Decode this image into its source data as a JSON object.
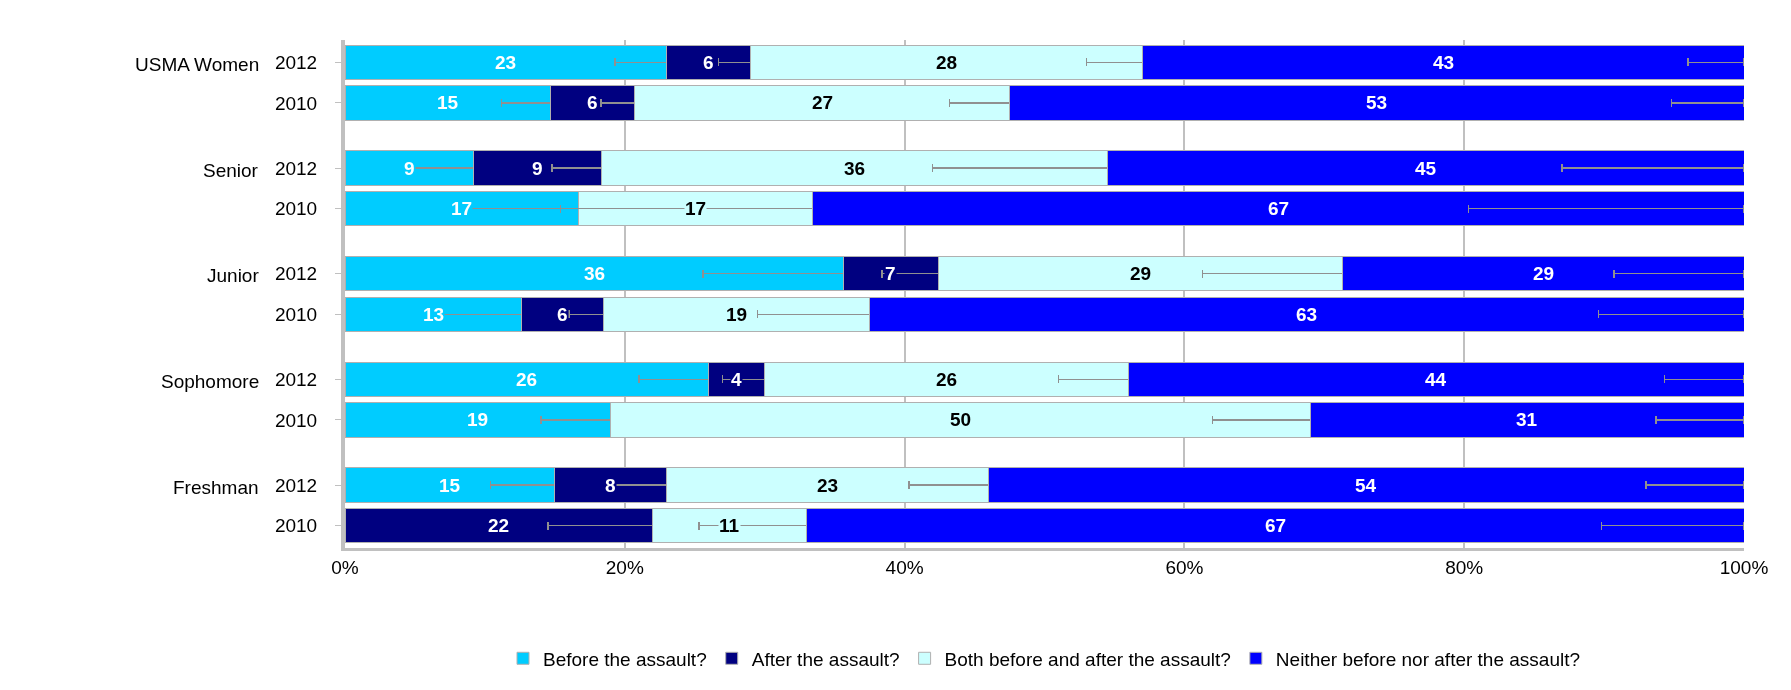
{
  "chart_data": {
    "type": "bar",
    "orientation": "horizontal",
    "stacked": true,
    "categories": [
      "2012",
      "2010",
      "2012",
      "2010",
      "2012",
      "2010",
      "2012",
      "2010",
      "2012",
      "2010"
    ],
    "annotations": [
      "USMA Women",
      "Senior",
      "Junior",
      "Sophomore",
      "Freshman"
    ],
    "series": [
      {
        "name": "Before the assault?",
        "color": "#00ccff",
        "values": [
          23,
          14.7,
          9.2,
          16.7,
          35.6,
          12.6,
          26,
          19,
          15,
          0
        ],
        "value_labels": [
          "23",
          "15",
          "9",
          "17",
          "36",
          "13",
          "26",
          "19",
          "15",
          null
        ],
        "errors": [
          3.7,
          3.5,
          4.5,
          8.5,
          10,
          5.6,
          5,
          5,
          4.6,
          null
        ]
      },
      {
        "name": "After the assault?",
        "color": "#000080",
        "values": [
          6,
          6,
          9.1,
          0,
          6.8,
          5.9,
          4,
          0,
          8,
          22
        ],
        "value_labels": [
          "6",
          "6",
          "9",
          null,
          "7",
          "6",
          "4",
          null,
          "8",
          "22"
        ],
        "errors": [
          2.3,
          2.4,
          3.5,
          null,
          4,
          2.5,
          3,
          null,
          4,
          7.5
        ]
      },
      {
        "name": "Both before and after the assault?",
        "color": "#ccffff",
        "values": [
          28,
          26.8,
          36.2,
          16.7,
          28.9,
          19,
          26,
          50,
          23,
          11
        ],
        "value_labels": [
          "28",
          "27",
          "36",
          "17",
          "29",
          "19",
          "26",
          "50",
          "23",
          "11"
        ],
        "errors": [
          4,
          4.3,
          12.5,
          18,
          10,
          8,
          5,
          7,
          5.7,
          7.7
        ]
      },
      {
        "name": "Neither before nor after the assault?",
        "color": "#0000ff",
        "values": [
          43,
          52.5,
          45.5,
          66.6,
          28.7,
          62.5,
          44,
          31,
          54,
          67
        ],
        "value_labels": [
          "43",
          "53",
          "45",
          "67",
          "29",
          "63",
          "44",
          "31",
          "54",
          "67"
        ],
        "errors": [
          [
            96,
            100
          ],
          [
            94.8,
            100
          ],
          [
            87,
            100
          ],
          [
            80.3,
            100
          ],
          [
            90.7,
            100
          ],
          [
            89.6,
            100
          ],
          [
            94.3,
            100
          ],
          [
            93.7,
            100
          ],
          [
            93,
            100
          ],
          [
            89.8,
            100
          ]
        ]
      }
    ],
    "xlim": [
      0,
      100
    ],
    "xticks": [
      {
        "value": 0,
        "label": "0%"
      },
      {
        "value": 20,
        "label": "20%"
      },
      {
        "value": 40,
        "label": "40%"
      },
      {
        "value": 60,
        "label": "60%"
      },
      {
        "value": 80,
        "label": "80%"
      },
      {
        "value": 100,
        "label": "100%"
      }
    ],
    "grid": "x",
    "legend": "bottom"
  }
}
